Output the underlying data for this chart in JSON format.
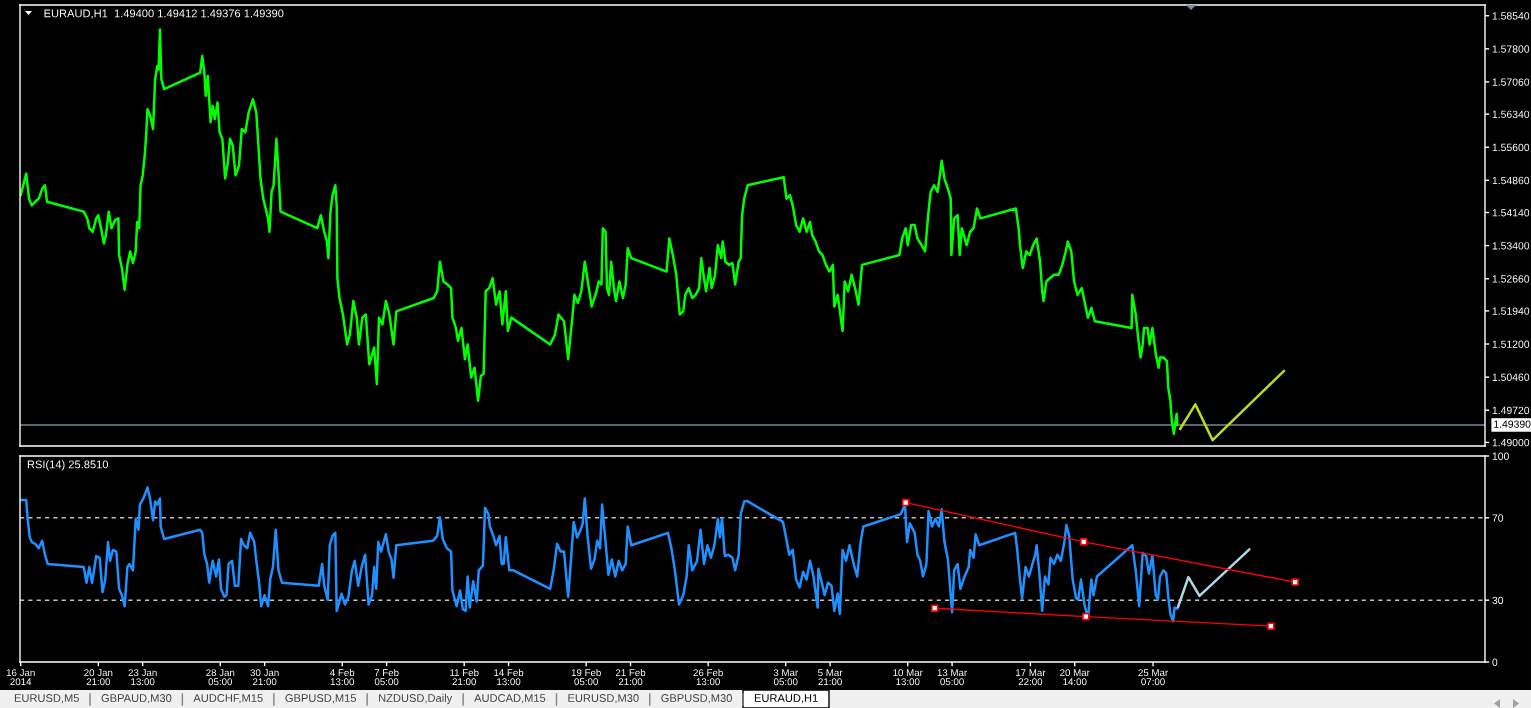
{
  "chart_data": [
    {
      "type": "line",
      "title": "EURAUD,H1  1.49400 1.49412 1.49376 1.49390",
      "series": [
        {
          "color": "#00ff00",
          "x": [
            "2014-01-16T05:00",
            "2014-01-16T13:00",
            "2014-01-16T17:00",
            "2014-01-16T21:00",
            "2014-01-17T02:00",
            "2014-01-17T07:00",
            "2014-01-17T12:00",
            "2014-01-17T16:00",
            "2014-01-17T19:00",
            "2014-01-20T00:00",
            "2014-01-20T05:00",
            "2014-01-20T08:00",
            "2014-01-20T13:00",
            "2014-01-20T18:00",
            "2014-01-20T21:00",
            "2014-01-21T01:00",
            "2014-01-21T05:00",
            "2014-01-21T08:00",
            "2014-01-21T12:00",
            "2014-01-21T16:00",
            "2014-01-21T21:00",
            "2014-01-22T02:00",
            "2014-01-22T03:00",
            "2014-01-22T07:00",
            "2014-01-22T11:00",
            "2014-01-22T15:00",
            "2014-01-22T19:00",
            "2014-01-22T23:00",
            "2014-01-23T03:00",
            "2014-01-23T05:00",
            "2014-01-23T08:00",
            "2014-01-23T10:00",
            "2014-01-23T13:00",
            "2014-01-23T16:00",
            "2014-01-23T18:00",
            "2014-01-23T20:00",
            "2014-01-24T00:00",
            "2014-01-24T04:00",
            "2014-01-24T07:00",
            "2014-01-24T10:00",
            "2014-01-24T12:00",
            "2014-01-24T14:00",
            "2014-01-24T16:00",
            "2014-01-24T20:00",
            "2014-01-27T00:00",
            "2014-01-27T03:00",
            "2014-01-27T06:00",
            "2014-01-27T08:00",
            "2014-01-27T11:00",
            "2014-01-27T15:00",
            "2014-01-27T18:00",
            "2014-01-27T21:00",
            "2014-01-28T01:00",
            "2014-01-28T04:00",
            "2014-01-28T08:00",
            "2014-01-28T12:00",
            "2014-01-28T16:00",
            "2014-01-28T19:00",
            "2014-01-28T23:00",
            "2014-01-29T03:00",
            "2014-01-29T08:00",
            "2014-01-29T12:00",
            "2014-01-29T17:00",
            "2014-01-29T22:00",
            "2014-01-30T04:00",
            "2014-01-30T09:00",
            "2014-01-30T12:00",
            "2014-01-30T15:00",
            "2014-01-30T19:00",
            "2014-01-31T02:00",
            "2014-01-31T04:00",
            "2014-01-31T07:00",
            "2014-01-31T10:00",
            "2014-01-31T14:00",
            "2014-01-31T17:00",
            "2014-01-31T20:00",
            "2014-02-03T01:00",
            "2014-02-03T06:00",
            "2014-02-03T11:00",
            "2014-02-03T15:00",
            "2014-02-03T17:00",
            "2014-02-03T20:00",
            "2014-02-03T23:00",
            "2014-02-04T03:00",
            "2014-02-04T05:00",
            "2014-02-04T06:00",
            "2014-02-04T09:00",
            "2014-02-04T14:00",
            "2014-02-04T20:00",
            "2014-02-05T00:00",
            "2014-02-05T05:00",
            "2014-02-05T10:00",
            "2014-02-05T13:00",
            "2014-02-05T18:00",
            "2014-02-05T23:00",
            "2014-02-06T04:00",
            "2014-02-06T11:00",
            "2014-02-06T15:00",
            "2014-02-06T18:00",
            "2014-02-06T23:00",
            "2014-02-07T04:00",
            "2014-02-07T09:00",
            "2014-02-07T15:00",
            "2014-02-07T19:00",
            "2014-02-10T01:00",
            "2014-02-10T06:00",
            "2014-02-10T10:00",
            "2014-02-10T15:00",
            "2014-02-10T21:00",
            "2014-02-11T02:00",
            "2014-02-11T04:00",
            "2014-02-11T09:00",
            "2014-02-11T12:00",
            "2014-02-11T17:00",
            "2014-02-11T22:00",
            "2014-02-12T02:00",
            "2014-02-12T07:00",
            "2014-02-12T12:00",
            "2014-02-12T17:00",
            "2014-02-12T21:00",
            "2014-02-13T01:00",
            "2014-02-13T04:00",
            "2014-02-13T09:00",
            "2014-02-13T14:00",
            "2014-02-13T19:00",
            "2014-02-14T00:00",
            "2014-02-14T04:00",
            "2014-02-14T09:00",
            "2014-02-14T12:00",
            "2014-02-14T17:00",
            "2014-02-17T01:00",
            "2014-02-17T08:00",
            "2014-02-17T13:00",
            "2014-02-17T21:00",
            "2014-02-18T03:00",
            "2014-02-18T09:00",
            "2014-02-18T12:00",
            "2014-02-18T17:00",
            "2014-02-18T22:00",
            "2014-02-19T03:00",
            "2014-02-19T08:00",
            "2014-02-19T13:00",
            "2014-02-19T20:00",
            "2014-02-19T23:00",
            "2014-02-20T03:00",
            "2014-02-20T05:00",
            "2014-02-20T09:00",
            "2014-02-20T11:00",
            "2014-02-20T14:00",
            "2014-02-20T17:00",
            "2014-02-20T21:00",
            "2014-02-21T00:00",
            "2014-02-21T05:00",
            "2014-02-21T10:00",
            "2014-02-21T14:00",
            "2014-02-21T17:00",
            "2014-02-21T22:00",
            "2014-02-24T01:00",
            "2014-02-24T05:00",
            "2014-02-24T10:00",
            "2014-02-24T15:00",
            "2014-02-24T20:00",
            "2014-02-25T01:00",
            "2014-02-25T04:00",
            "2014-02-25T09:00",
            "2014-02-25T14:00",
            "2014-02-25T19:00",
            "2014-02-26T00:00",
            "2014-02-26T03:00",
            "2014-02-26T07:00",
            "2014-02-26T10:00",
            "2014-02-26T15:00",
            "2014-02-26T18:00",
            "2014-02-26T23:00",
            "2014-02-27T03:00",
            "2014-02-27T08:00",
            "2014-02-27T10:00",
            "2014-02-27T14:00",
            "2014-02-27T19:00",
            "2014-02-28T00:00",
            "2014-02-28T04:00",
            "2014-02-28T09:00",
            "2014-02-28T12:00",
            "2014-02-28T14:00",
            "2014-02-28T17:00",
            "2014-02-28T22:00",
            "2014-03-03T02:00",
            "2014-03-03T06:00",
            "2014-03-03T11:00",
            "2014-03-03T15:00",
            "2014-03-03T20:00",
            "2014-03-04T01:00",
            "2014-03-04T06:00",
            "2014-03-04T11:00",
            "2014-03-04T16:00",
            "2014-03-04T19:00",
            "2014-03-05T00:00",
            "2014-03-05T05:00",
            "2014-03-05T10:00",
            "2014-03-05T15:00",
            "2014-03-05T20:00",
            "2014-03-06T01:00",
            "2014-03-06T03:00",
            "2014-03-06T08:00",
            "2014-03-06T13:00",
            "2014-03-06T15:00",
            "2014-03-06T18:00",
            "2014-03-06T23:00",
            "2014-03-07T04:00",
            "2014-03-07T09:00",
            "2014-03-07T14:00",
            "2014-03-07T19:00",
            "2014-03-10T01:00",
            "2014-03-10T05:00",
            "2014-03-10T10:00",
            "2014-03-10T13:00",
            "2014-03-10T18:00",
            "2014-03-10T23:00",
            "2014-03-11T03:00",
            "2014-03-11T09:00",
            "2014-03-11T14:00",
            "2014-03-11T19:00",
            "2014-03-11T22:00",
            "2014-03-12T03:00",
            "2014-03-12T08:00",
            "2014-03-12T12:00",
            "2014-03-12T14:00",
            "2014-03-12T18:00",
            "2014-03-12T23:00",
            "2014-03-13T03:00",
            "2014-03-13T04:00",
            "2014-03-13T08:00",
            "2014-03-13T13:00",
            "2014-03-13T16:00",
            "2014-03-13T19:00",
            "2014-03-14T02:00",
            "2014-03-14T07:00",
            "2014-03-14T12:00",
            "2014-03-14T17:00",
            "2014-03-14T22:00",
            "2014-03-17T01:00",
            "2014-03-17T05:00",
            "2014-03-17T07:00",
            "2014-03-17T11:00",
            "2014-03-17T16:00",
            "2014-03-17T21:00",
            "2014-03-18T02:00",
            "2014-03-18T07:00",
            "2014-03-18T12:00",
            "2014-03-18T15:00",
            "2014-03-18T17:00",
            "2014-03-18T21:00",
            "2014-03-19T02:00",
            "2014-03-19T08:00",
            "2014-03-19T15:00",
            "2014-03-19T20:00",
            "2014-03-20T01:00",
            "2014-03-20T04:00",
            "2014-03-20T09:00",
            "2014-03-20T13:00",
            "2014-03-20T18:00",
            "2014-03-21T00:00",
            "2014-03-21T04:00",
            "2014-03-21T09:00",
            "2014-03-21T14:00",
            "2014-03-21T19:00",
            "2014-03-24T00:00",
            "2014-03-24T01:00",
            "2014-03-24T06:00",
            "2014-03-24T10:00",
            "2014-03-24T13:00",
            "2014-03-24T16:00",
            "2014-03-24T18:00",
            "2014-03-24T23:00",
            "2014-03-25T02:00",
            "2014-03-25T06:00",
            "2014-03-25T11:00",
            "2014-03-25T15:00",
            "2014-03-25T17:00",
            "2014-03-25T22:00",
            "2014-03-26T03:00",
            "2014-03-26T05:00",
            "2014-03-26T08:00",
            "2014-03-26T10:00",
            "2014-03-26T13:00",
            "2014-03-26T17:00",
            "2014-03-26T18:00"
          ],
          "values": [
            1.5453,
            1.5501,
            1.5445,
            1.543,
            1.5438,
            1.5445,
            1.5467,
            1.5475,
            1.5438,
            1.5416,
            1.5401,
            1.5379,
            1.5371,
            1.5401,
            1.5408,
            1.5379,
            1.5345,
            1.5364,
            1.5416,
            1.5379,
            1.5397,
            1.5401,
            1.5319,
            1.529,
            1.5241,
            1.5297,
            1.5327,
            1.5301,
            1.5327,
            1.5393,
            1.5379,
            1.5475,
            1.5497,
            1.5541,
            1.5586,
            1.5645,
            1.563,
            1.5601,
            1.5712,
            1.5741,
            1.5734,
            1.5823,
            1.5712,
            1.569,
            1.5727,
            1.5764,
            1.5727,
            1.5675,
            1.5719,
            1.5616,
            1.5653,
            1.5623,
            1.566,
            1.5593,
            1.5579,
            1.549,
            1.5527,
            1.5579,
            1.5564,
            1.5497,
            1.5519,
            1.5601,
            1.5593,
            1.5638,
            1.5667,
            1.5638,
            1.5564,
            1.549,
            1.5445,
            1.5401,
            1.5371,
            1.546,
            1.5475,
            1.5579,
            1.5504,
            1.5416,
            1.5379,
            1.5408,
            1.5371,
            1.5349,
            1.5312,
            1.5416,
            1.5453,
            1.5475,
            1.543,
            1.5267,
            1.5223,
            1.5186,
            1.5119,
            1.5141,
            1.5216,
            1.5179,
            1.5119,
            1.5179,
            1.5186,
            1.5075,
            1.5112,
            1.503,
            1.5179,
            1.5164,
            1.5216,
            1.5186,
            1.5119,
            1.5193,
            1.5223,
            1.5238,
            1.5304,
            1.526,
            1.5253,
            1.5245,
            1.5179,
            1.5156,
            1.5127,
            1.5156,
            1.5086,
            1.5119,
            1.5045,
            1.5067,
            1.4993,
            1.5049,
            1.5053,
            1.5238,
            1.5245,
            1.5267,
            1.5208,
            1.5238,
            1.5164,
            1.5238,
            1.5149,
            1.5179,
            1.5119,
            1.5141,
            1.5186,
            1.5171,
            1.5086,
            1.5179,
            1.523,
            1.5212,
            1.5238,
            1.5304,
            1.5253,
            1.5204,
            1.5238,
            1.526,
            1.5253,
            1.5379,
            1.5371,
            1.5245,
            1.523,
            1.5304,
            1.5245,
            1.5216,
            1.526,
            1.5223,
            1.5253,
            1.5334,
            1.5312,
            1.5282,
            1.5356,
            1.5319,
            1.5275,
            1.5186,
            1.5193,
            1.523,
            1.5245,
            1.5223,
            1.523,
            1.5245,
            1.5312,
            1.5267,
            1.5238,
            1.529,
            1.5245,
            1.5275,
            1.5341,
            1.5312,
            1.5349,
            1.5304,
            1.5297,
            1.5301,
            1.5253,
            1.5304,
            1.5312,
            1.5408,
            1.5445,
            1.5475,
            1.5493,
            1.5445,
            1.5453,
            1.543,
            1.5386,
            1.5371,
            1.5401,
            1.5371,
            1.5393,
            1.5364,
            1.5349,
            1.5327,
            1.5319,
            1.5297,
            1.5282,
            1.5297,
            1.5204,
            1.523,
            1.5171,
            1.5149,
            1.526,
            1.5238,
            1.5275,
            1.5245,
            1.5208,
            1.5297,
            1.5319,
            1.5356,
            1.5379,
            1.5341,
            1.5386,
            1.5386,
            1.5356,
            1.5341,
            1.5327,
            1.5416,
            1.546,
            1.5475,
            1.546,
            1.5504,
            1.553,
            1.549,
            1.5467,
            1.5445,
            1.5319,
            1.5401,
            1.5408,
            1.5319,
            1.5379,
            1.5341,
            1.5371,
            1.5379,
            1.5423,
            1.5401,
            1.5423,
            1.5379,
            1.5341,
            1.529,
            1.5327,
            1.5319,
            1.5341,
            1.5356,
            1.5304,
            1.5238,
            1.5216,
            1.526,
            1.5267,
            1.5275,
            1.5275,
            1.5297,
            1.5327,
            1.5349,
            1.5327,
            1.526,
            1.523,
            1.5245,
            1.5216,
            1.5179,
            1.5201,
            1.5171,
            1.5156,
            1.523,
            1.5186,
            1.5127,
            1.509,
            1.5119,
            1.5156,
            1.5156,
            1.5119,
            1.5156,
            1.5097,
            1.5067,
            1.509,
            1.509,
            1.5082,
            1.5022,
            1.4993,
            1.4949,
            1.4919,
            1.4964,
            1.4939
          ]
        },
        {
          "color": "#c0d820",
          "x": [
            "2014-03-26T22:00",
            "2014-03-27T20:00",
            "2014-03-28T21:00",
            "2014-04-02T04:00"
          ],
          "values": [
            1.493,
            1.4985,
            1.4905,
            1.506
          ]
        }
      ],
      "xlim": [
        "2014-01-16T04:00",
        "2014-04-14T06:00"
      ],
      "ylim": [
        1.4892,
        1.5878
      ],
      "yticks": [
        {
          "value": 1.5854,
          "label": "1.58540"
        },
        {
          "value": 1.578,
          "label": "1.57800"
        },
        {
          "value": 1.5706,
          "label": "1.57060"
        },
        {
          "value": 1.5634,
          "label": "1.56340"
        },
        {
          "value": 1.556,
          "label": "1.55600"
        },
        {
          "value": 1.5486,
          "label": "1.54860"
        },
        {
          "value": 1.5414,
          "label": "1.54140"
        },
        {
          "value": 1.534,
          "label": "1.53400"
        },
        {
          "value": 1.5266,
          "label": "1.52660"
        },
        {
          "value": 1.5194,
          "label": "1.51940"
        },
        {
          "value": 1.512,
          "label": "1.51200"
        },
        {
          "value": 1.5046,
          "label": "1.50460"
        },
        {
          "value": 1.4972,
          "label": "1.49720"
        },
        {
          "value": 1.49,
          "label": "1.49000"
        }
      ],
      "ref_lines": [
        {
          "axis": "y",
          "value": 1.4939,
          "label": "1.49390",
          "color": "#778899"
        }
      ],
      "tick_labels": "y"
    },
    {
      "type": "line",
      "title": "RSI(14) 25.8510",
      "series": [
        {
          "color": "#1e90ff",
          "x": [
            "2014-01-16T05:00",
            "2014-01-16T13:00",
            "2014-01-16T15:00",
            "2014-01-16T18:00",
            "2014-01-16T21:00",
            "2014-01-17T02:00",
            "2014-01-17T07:00",
            "2014-01-17T12:00",
            "2014-01-17T16:00",
            "2014-01-17T20:00",
            "2014-01-20T00:00",
            "2014-01-20T04:00",
            "2014-01-20T08:00",
            "2014-01-20T12:00",
            "2014-01-20T18:00",
            "2014-01-20T23:00",
            "2014-01-21T03:00",
            "2014-01-21T07:00",
            "2014-01-21T11:00",
            "2014-01-21T14:00",
            "2014-01-21T18:00",
            "2014-01-21T23:00",
            "2014-01-22T03:00",
            "2014-01-22T07:00",
            "2014-01-22T11:00",
            "2014-01-22T15:00",
            "2014-01-22T18:00",
            "2014-01-22T23:00",
            "2014-01-23T03:00",
            "2014-01-23T07:00",
            "2014-01-23T09:00",
            "2014-01-23T14:00",
            "2014-01-23T20:00",
            "2014-01-24T00:00",
            "2014-01-24T04:00",
            "2014-01-24T07:00",
            "2014-01-24T10:00",
            "2014-01-24T14:00",
            "2014-01-24T15:00",
            "2014-01-24T20:00",
            "2014-01-27T00:00",
            "2014-01-27T03:00",
            "2014-01-27T06:00",
            "2014-01-27T10:00",
            "2014-01-27T13:00",
            "2014-01-27T18:00",
            "2014-01-27T23:00",
            "2014-01-28T03:00",
            "2014-01-28T06:00",
            "2014-01-28T11:00",
            "2014-01-28T14:00",
            "2014-01-28T17:00",
            "2014-01-28T22:00",
            "2014-01-29T02:00",
            "2014-01-29T07:00",
            "2014-01-29T11:00",
            "2014-01-29T15:00",
            "2014-01-29T20:00",
            "2014-01-30T00:00",
            "2014-01-30T06:00",
            "2014-01-30T09:00",
            "2014-01-30T13:00",
            "2014-01-30T16:00",
            "2014-01-30T21:00",
            "2014-01-31T02:00",
            "2014-01-31T05:00",
            "2014-01-31T09:00",
            "2014-01-31T13:00",
            "2014-01-31T17:00",
            "2014-01-31T22:00",
            "2014-02-03T03:00",
            "2014-02-03T08:00",
            "2014-02-03T11:00",
            "2014-02-03T16:00",
            "2014-02-03T19:00",
            "2014-02-03T23:00",
            "2014-02-04T03:00",
            "2014-02-04T05:00",
            "2014-02-04T09:00",
            "2014-02-04T12:00",
            "2014-02-04T17:00",
            "2014-02-04T22:00",
            "2014-02-05T03:00",
            "2014-02-05T07:00",
            "2014-02-05T12:00",
            "2014-02-05T17:00",
            "2014-02-05T22:00",
            "2014-02-06T03:00",
            "2014-02-06T08:00",
            "2014-02-06T11:00",
            "2014-02-06T14:00",
            "2014-02-06T17:00",
            "2014-02-06T21:00",
            "2014-02-07T04:00",
            "2014-02-07T08:00",
            "2014-02-07T12:00",
            "2014-02-07T15:00",
            "2014-02-07T19:00",
            "2014-02-10T00:00",
            "2014-02-10T06:00",
            "2014-02-10T10:00",
            "2014-02-10T14:00",
            "2014-02-10T20:00",
            "2014-02-11T02:00",
            "2014-02-11T04:00",
            "2014-02-11T10:00",
            "2014-02-11T15:00",
            "2014-02-11T19:00",
            "2014-02-11T23:00",
            "2014-02-12T02:00",
            "2014-02-12T05:00",
            "2014-02-12T10:00",
            "2014-02-12T15:00",
            "2014-02-12T18:00",
            "2014-02-13T00:00",
            "2014-02-13T03:00",
            "2014-02-13T08:00",
            "2014-02-13T10:00",
            "2014-02-13T15:00",
            "2014-02-13T19:00",
            "2014-02-14T00:00",
            "2014-02-14T03:00",
            "2014-02-14T06:00",
            "2014-02-14T09:00",
            "2014-02-14T14:00",
            "2014-02-14T20:00",
            "2014-02-17T01:00",
            "2014-02-17T06:00",
            "2014-02-17T11:00",
            "2014-02-17T16:00",
            "2014-02-17T21:00",
            "2014-02-18T03:00",
            "2014-02-18T06:00",
            "2014-02-18T11:00",
            "2014-02-18T16:00",
            "2014-02-18T21:00",
            "2014-02-19T00:00",
            "2014-02-19T03:00",
            "2014-02-19T07:00",
            "2014-02-19T12:00",
            "2014-02-19T17:00",
            "2014-02-19T21:00",
            "2014-02-20T01:00",
            "2014-02-20T04:00",
            "2014-02-20T09:00",
            "2014-02-20T13:00",
            "2014-02-20T18:00",
            "2014-02-20T23:00",
            "2014-02-21T04:00",
            "2014-02-21T09:00",
            "2014-02-21T14:00",
            "2014-02-21T17:00",
            "2014-02-21T22:00",
            "2014-02-24T03:00",
            "2014-02-24T08:00",
            "2014-02-24T13:00",
            "2014-02-24T19:00",
            "2014-02-25T01:00",
            "2014-02-25T06:00",
            "2014-02-25T09:00",
            "2014-02-25T14:00",
            "2014-02-25T21:00",
            "2014-02-26T02:00",
            "2014-02-26T07:00",
            "2014-02-26T12:00",
            "2014-02-26T17:00",
            "2014-02-26T22:00",
            "2014-02-27T03:00",
            "2014-02-27T06:00",
            "2014-02-27T09:00",
            "2014-02-27T13:00",
            "2014-02-27T18:00",
            "2014-02-28T00:00",
            "2014-02-28T04:00",
            "2014-02-28T09:00",
            "2014-02-28T12:00",
            "2014-02-28T17:00",
            "2014-02-28T21:00",
            "2014-03-03T01:00",
            "2014-03-03T05:00",
            "2014-03-03T10:00",
            "2014-03-03T15:00",
            "2014-03-03T20:00",
            "2014-03-04T01:00",
            "2014-03-04T06:00",
            "2014-03-04T11:00",
            "2014-03-04T16:00",
            "2014-03-04T21:00",
            "2014-03-05T03:00",
            "2014-03-05T04:00",
            "2014-03-05T08:00",
            "2014-03-05T13:00",
            "2014-03-05T18:00",
            "2014-03-05T23:00",
            "2014-03-06T03:00",
            "2014-03-06T08:00",
            "2014-03-06T11:00",
            "2014-03-06T15:00",
            "2014-03-06T20:00",
            "2014-03-07T01:00",
            "2014-03-07T07:00",
            "2014-03-07T12:00",
            "2014-03-07T17:00",
            "2014-03-07T21:00",
            "2014-03-10T03:00",
            "2014-03-10T09:00",
            "2014-03-10T12:00",
            "2014-03-10T16:00",
            "2014-03-10T23:00",
            "2014-03-11T03:00",
            "2014-03-11T07:00",
            "2014-03-11T11:00",
            "2014-03-11T16:00",
            "2014-03-11T19:00",
            "2014-03-12T00:00",
            "2014-03-12T05:00",
            "2014-03-12T10:00",
            "2014-03-12T14:00",
            "2014-03-12T18:00",
            "2014-03-12T23:00",
            "2014-03-13T03:00",
            "2014-03-13T05:00",
            "2014-03-13T08:00",
            "2014-03-13T13:00",
            "2014-03-13T17:00",
            "2014-03-13T23:00",
            "2014-03-14T05:00",
            "2014-03-14T07:00",
            "2014-03-14T12:00",
            "2014-03-14T15:00",
            "2014-03-14T20:00",
            "2014-03-17T00:00",
            "2014-03-17T03:00",
            "2014-03-17T07:00",
            "2014-03-17T10:00",
            "2014-03-17T15:00",
            "2014-03-17T20:00",
            "2014-03-18T01:00",
            "2014-03-18T05:00",
            "2014-03-18T07:00",
            "2014-03-18T11:00",
            "2014-03-18T15:00",
            "2014-03-18T19:00",
            "2014-03-19T00:00",
            "2014-03-19T03:00",
            "2014-03-19T08:00",
            "2014-03-19T13:00",
            "2014-03-19T18:00",
            "2014-03-19T23:00",
            "2014-03-20T02:00",
            "2014-03-20T06:00",
            "2014-03-20T11:00",
            "2014-03-20T16:00",
            "2014-03-20T19:00",
            "2014-03-20T23:00",
            "2014-03-21T04:00",
            "2014-03-21T09:00",
            "2014-03-21T14:00",
            "2014-03-21T17:00",
            "2014-03-21T22:00",
            "2014-03-24T01:00",
            "2014-03-24T06:00",
            "2014-03-24T11:00",
            "2014-03-24T16:00",
            "2014-03-24T21:00",
            "2014-03-25T01:00",
            "2014-03-25T06:00",
            "2014-03-25T11:00",
            "2014-03-25T14:00",
            "2014-03-25T17:00",
            "2014-03-25T22:00",
            "2014-03-26T02:00",
            "2014-03-26T05:00",
            "2014-03-26T08:00",
            "2014-03-26T12:00",
            "2014-03-26T14:00",
            "2014-03-26T18:00"
          ],
          "values": [
            78.6,
            78.6,
            69.5,
            60.5,
            58.2,
            57.4,
            55.2,
            58.9,
            52.1,
            47.6,
            46.1,
            38.5,
            46.1,
            38.5,
            51.4,
            50.6,
            33.9,
            40.0,
            58.2,
            49.1,
            54.4,
            53.6,
            35.5,
            32.4,
            27.1,
            46.1,
            47.6,
            44.5,
            69.5,
            64.2,
            76.4,
            79.4,
            84.7,
            78.6,
            68.8,
            77.9,
            76.4,
            79.4,
            65.8,
            59.7,
            64.2,
            62.7,
            52.1,
            47.6,
            38.5,
            49.1,
            41.5,
            49.8,
            35.5,
            31.7,
            32.4,
            47.6,
            49.1,
            37.0,
            37.0,
            59.7,
            56.7,
            55.2,
            62.7,
            58.2,
            49.1,
            38.5,
            27.1,
            32.4,
            27.1,
            40.0,
            46.1,
            64.2,
            44.5,
            38.5,
            37.0,
            47.6,
            37.0,
            30.2,
            56.7,
            61.2,
            62.7,
            24.8,
            29.4,
            33.2,
            27.9,
            31.7,
            44.5,
            49.1,
            37.0,
            46.1,
            52.1,
            27.9,
            32.4,
            46.1,
            35.5,
            58.2,
            53.6,
            62.0,
            53.6,
            49.8,
            40.8,
            56.7,
            58.9,
            61.2,
            70.3,
            59.7,
            55.2,
            53.6,
            34.7,
            27.1,
            34.7,
            25.6,
            24.8,
            41.5,
            26.4,
            39.2,
            29.4,
            44.5,
            46.8,
            74.8,
            71.8,
            65.8,
            61.2,
            56.7,
            61.2,
            47.6,
            47.6,
            60.5,
            44.5,
            44.5,
            35.5,
            44.5,
            57.4,
            53.6,
            53.6,
            31.7,
            44.5,
            68.0,
            60.5,
            64.2,
            67.3,
            79.4,
            61.2,
            45.3,
            49.8,
            58.9,
            55.2,
            76.4,
            58.2,
            42.3,
            49.8,
            41.5,
            49.1,
            44.5,
            47.6,
            65.8,
            56.7,
            62.7,
            55.2,
            44.5,
            27.9,
            32.4,
            41.5,
            56.7,
            44.5,
            49.1,
            64.2,
            47.6,
            56.7,
            50.6,
            56.7,
            69.5,
            60.5,
            69.5,
            51.4,
            52.1,
            50.6,
            44.5,
            52.1,
            71.8,
            77.9,
            78.2,
            68.0,
            61.2,
            52.1,
            54.4,
            40.0,
            36.2,
            43.8,
            40.0,
            49.1,
            41.5,
            26.4,
            45.3,
            40.0,
            32.4,
            38.5,
            37.0,
            24.8,
            33.2,
            23.3,
            54.4,
            49.1,
            56.7,
            47.6,
            41.5,
            58.2,
            65.8,
            71.8,
            76.4,
            58.2,
            67.3,
            62.7,
            52.1,
            49.1,
            41.5,
            47.6,
            73.3,
            65.8,
            69.5,
            65.8,
            74.1,
            58.2,
            49.8,
            32.4,
            24.1,
            44.5,
            47.6,
            35.5,
            41.5,
            46.1,
            54.4,
            50.6,
            62.0,
            56.7,
            62.7,
            54.4,
            40.0,
            30.9,
            46.1,
            41.5,
            47.6,
            52.1,
            56.7,
            43.0,
            24.8,
            41.5,
            37.7,
            50.6,
            47.6,
            52.1,
            49.1,
            58.2,
            66.5,
            61.2,
            40.0,
            30.9,
            30.2,
            40.0,
            27.9,
            21.1,
            40.0,
            32.4,
            41.5,
            56.7,
            44.5,
            27.1,
            52.9,
            51.4,
            43.0,
            51.4,
            32.4,
            30.2,
            41.5,
            44.5,
            43.0,
            31.7,
            23.3,
            19.8,
            26.4,
            25.9
          ]
        },
        {
          "color": "#add8e6",
          "x": [
            "2014-03-26T19:00",
            "2014-03-27T10:00",
            "2014-03-28T02:00",
            "2014-03-31T02:00"
          ],
          "values": [
            26.7,
            41.2,
            32.1,
            54.7
          ]
        },
        {
          "color": "#ff0000",
          "marker": "square",
          "x": [
            "2014-03-10T10:00",
            "2014-03-21T03:00",
            "2014-04-02T20:00"
          ],
          "values": [
            77.4,
            58.3,
            38.8
          ]
        },
        {
          "color": "#ff0000",
          "marker": "square",
          "x": [
            "2014-03-12T04:00",
            "2014-03-21T06:00",
            "2014-04-01T09:00"
          ],
          "values": [
            26.1,
            22.0,
            17.4
          ]
        }
      ],
      "xlim": [
        "2014-01-16T04:00",
        "2014-04-14T06:00"
      ],
      "ylim": [
        0,
        100
      ],
      "yticks": [
        0,
        30,
        70,
        100
      ],
      "xticks": [
        {
          "value": "2014-01-16T05:00",
          "label": "16 Jan 2014"
        },
        {
          "value": "2014-01-20T21:00",
          "label": "20 Jan 21:00"
        },
        {
          "value": "2014-01-23T13:00",
          "label": "23 Jan 13:00"
        },
        {
          "value": "2014-01-28T05:00",
          "label": "28 Jan 05:00"
        },
        {
          "value": "2014-01-30T21:00",
          "label": "30 Jan 21:00"
        },
        {
          "value": "2014-02-04T13:00",
          "label": "4 Feb 13:00"
        },
        {
          "value": "2014-02-07T05:00",
          "label": "7 Feb 05:00"
        },
        {
          "value": "2014-02-11T21:00",
          "label": "11 Feb 21:00"
        },
        {
          "value": "2014-02-14T13:00",
          "label": "14 Feb 13:00"
        },
        {
          "value": "2014-02-19T05:00",
          "label": "19 Feb 05:00"
        },
        {
          "value": "2014-02-21T21:00",
          "label": "21 Feb 21:00"
        },
        {
          "value": "2014-02-26T13:00",
          "label": "26 Feb 13:00"
        },
        {
          "value": "2014-03-03T05:00",
          "label": "3 Mar 05:00"
        },
        {
          "value": "2014-03-05T21:00",
          "label": "5 Mar 21:00"
        },
        {
          "value": "2014-03-10T13:00",
          "label": "10 Mar 13:00"
        },
        {
          "value": "2014-03-13T05:00",
          "label": "13 Mar 05:00"
        },
        {
          "value": "2014-03-17T22:00",
          "label": "17 Mar 22:00"
        },
        {
          "value": "2014-03-20T14:00",
          "label": "20 Mar 14:00"
        },
        {
          "value": "2014-03-25T07:00",
          "label": "25 Mar 07:00"
        }
      ],
      "ref_lines": [
        {
          "axis": "y",
          "value": 70,
          "color": "#c0c0c0",
          "line_style": "dashed"
        },
        {
          "axis": "y",
          "value": 30,
          "color": "#c0c0c0",
          "line_style": "dashed"
        }
      ],
      "annotations": [
        "EURUSD,M5",
        "GBPAUD,M30",
        "AUDCHF,M15",
        "GBPUSD,M15",
        "NZDUSD,Daily",
        "AUDCAD,M15",
        "EURUSD,M30",
        "GBPUSD,M30",
        "EURAUD,H1"
      ]
    }
  ]
}
